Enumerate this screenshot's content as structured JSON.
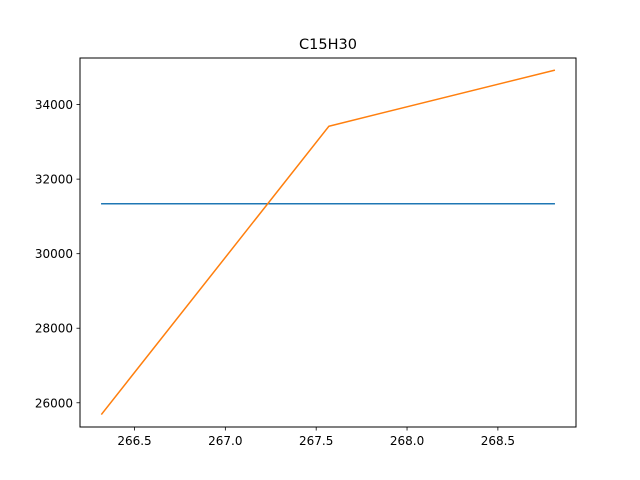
{
  "chart_data": {
    "type": "line",
    "title": "C15H30",
    "xlabel": "",
    "ylabel": "",
    "xlim": [
      266.2,
      268.93
    ],
    "ylim": [
      25350,
      35250
    ],
    "grid": false,
    "x_ticks": [
      266.5,
      267.0,
      267.5,
      268.0,
      268.5
    ],
    "x_tick_labels": [
      "266.5",
      "267.0",
      "267.5",
      "268.0",
      "268.5"
    ],
    "y_ticks": [
      26000,
      28000,
      30000,
      32000,
      34000
    ],
    "y_tick_labels": [
      "26000",
      "28000",
      "30000",
      "32000",
      "34000"
    ],
    "series": [
      {
        "color": "#1f77b4",
        "x": [
          266.32,
          268.81
        ],
        "y": [
          31340,
          31340
        ]
      },
      {
        "color": "#ff7f0e",
        "x": [
          266.32,
          267.57,
          268.81
        ],
        "y": [
          25700,
          33420,
          34920
        ]
      }
    ]
  }
}
